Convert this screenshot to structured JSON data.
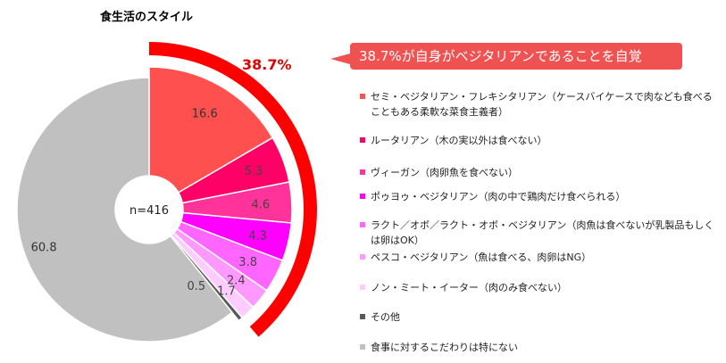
{
  "title": "食生活のスタイル",
  "sample_label": "n=416",
  "highlight": {
    "percent_label": "38.7%",
    "callout_text": "38.7%が自身がベジタリアンであることを自覚",
    "color": "#ff0000"
  },
  "chart_data": {
    "type": "pie",
    "donut": true,
    "start_angle_deg": 0,
    "direction": "clockwise",
    "unit": "%",
    "slices": [
      {
        "label": "セミ・ベジタリアン・フレキシタリアン（ケースバイケースで肉なども食べることもある柔軟な菜食主義者）",
        "value": 16.6,
        "value_label": "16.6",
        "color": "#ff5050",
        "text_color": "#333333"
      },
      {
        "label": "ルータリアン（木の実以外は食べない）",
        "value": 5.3,
        "value_label": "5.3",
        "color": "#ff0066",
        "text_color": "#444444"
      },
      {
        "label": "ヴィーガン（肉卵魚を食べない）",
        "value": 4.6,
        "value_label": "4.6",
        "color": "#ff3399",
        "text_color": "#444444"
      },
      {
        "label": "ポゥヨゥ・ベジタリアン（肉の中で鶏肉だけ食べられる）",
        "value": 4.3,
        "value_label": "4.3",
        "color": "#ff00ff",
        "text_color": "#444444"
      },
      {
        "label": "ラクト／オボ／ラクト・オボ・ベジタリアン（肉魚は食べないが乳製品もしくは卵はOK）",
        "value": 3.8,
        "value_label": "3.8",
        "color": "#ff66ff",
        "text_color": "#444444"
      },
      {
        "label": "ペスコ・ベジタリアン（魚は食べる、肉卵はNG）",
        "value": 2.4,
        "value_label": "2.4",
        "color": "#ff99ff",
        "text_color": "#444444"
      },
      {
        "label": "ノン・ミート・イーター（肉のみ食べない）",
        "value": 1.7,
        "value_label": "1.7",
        "color": "#ffccff",
        "text_color": "#444444"
      },
      {
        "label": "その他",
        "value": 0.5,
        "value_label": "0.5",
        "color": "#595959",
        "text_color": "#444444"
      },
      {
        "label": "食事に対するこだわりは特にない",
        "value": 60.8,
        "value_label": "60.8",
        "color": "#c0c0c0",
        "text_color": "#333333"
      }
    ]
  }
}
